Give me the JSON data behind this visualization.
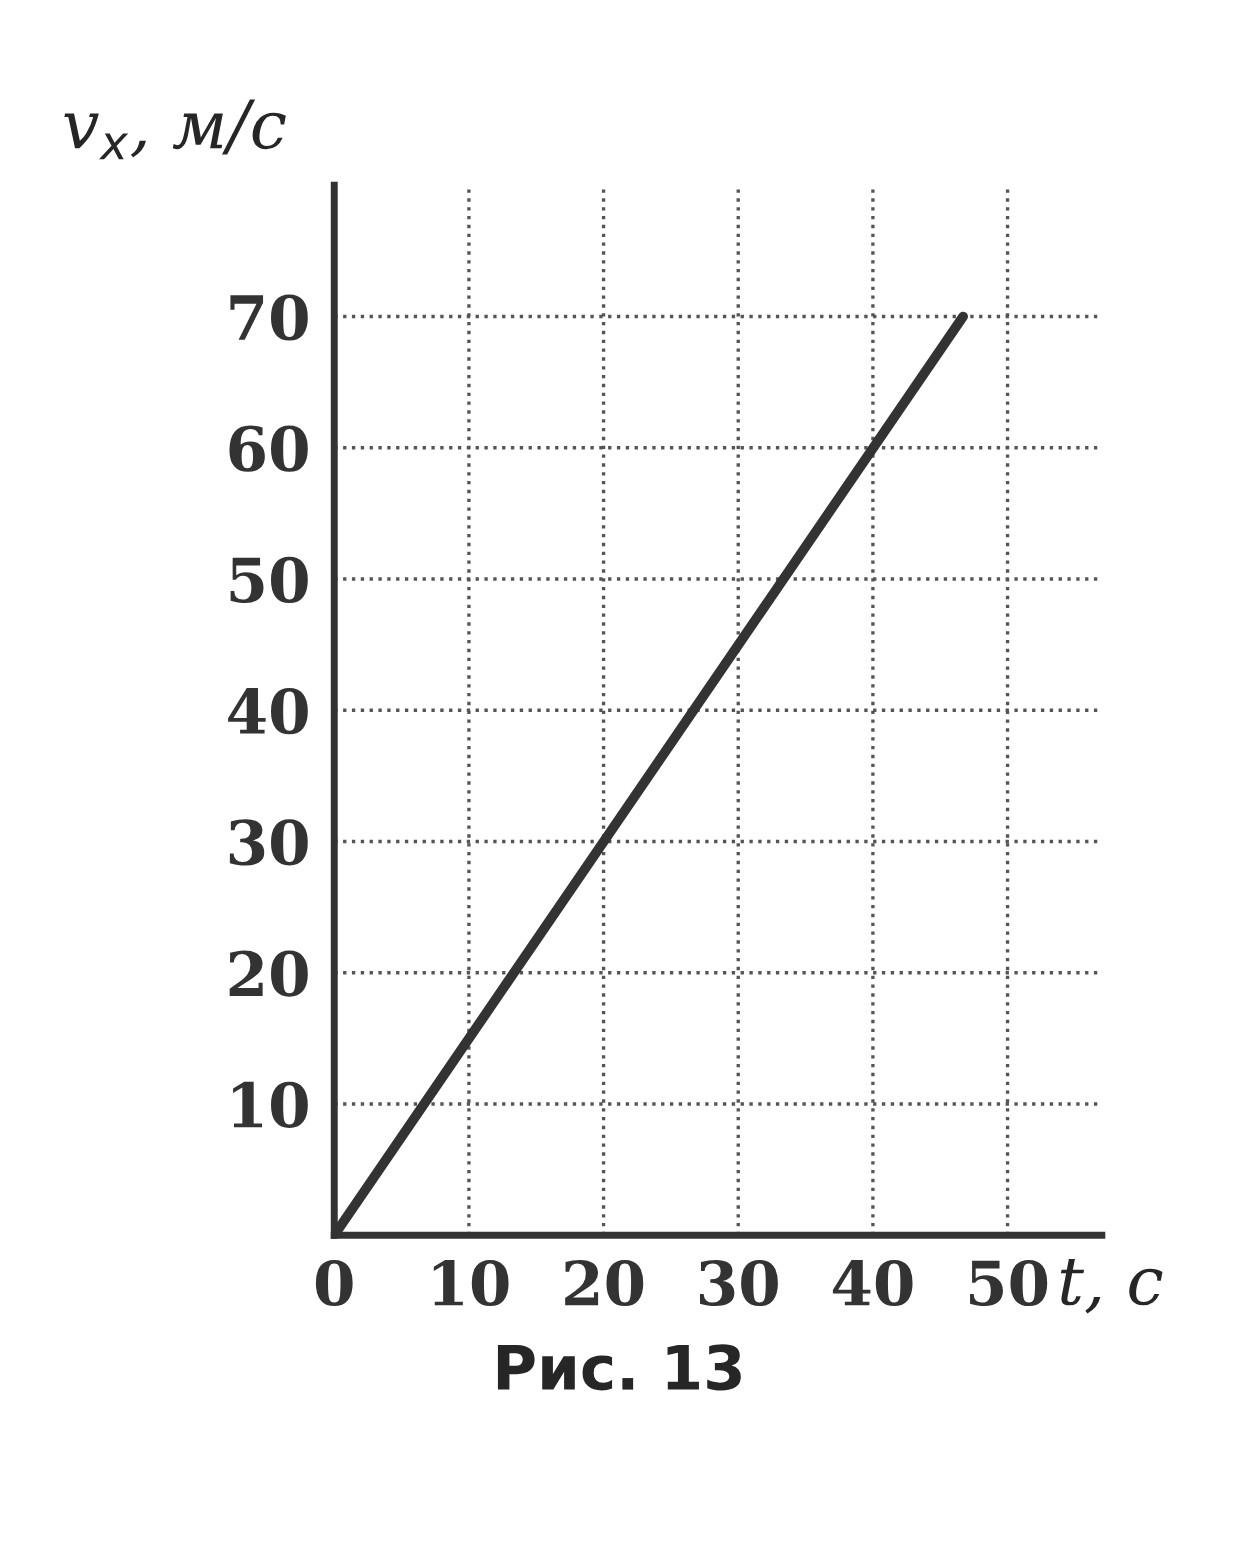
{
  "chart_data": {
    "type": "line",
    "x": [
      0,
      46.7
    ],
    "series": [
      {
        "color": "#333333",
        "values": [
          0,
          70
        ]
      }
    ],
    "xlabel": "t, с",
    "ylabel": "v$_{x}$, м/с",
    "xlim": [
      0,
      57
    ],
    "ylim": [
      0,
      80
    ],
    "xticks": [
      0,
      10,
      20,
      30,
      40,
      50
    ],
    "yticks": [
      {
        "value": 0,
        "label": null
      },
      10,
      20,
      30,
      40,
      50,
      60,
      70
    ],
    "grid": true,
    "line_style": "solid",
    "marker": "none",
    "annotations": [
      "Рис. 13"
    ]
  }
}
